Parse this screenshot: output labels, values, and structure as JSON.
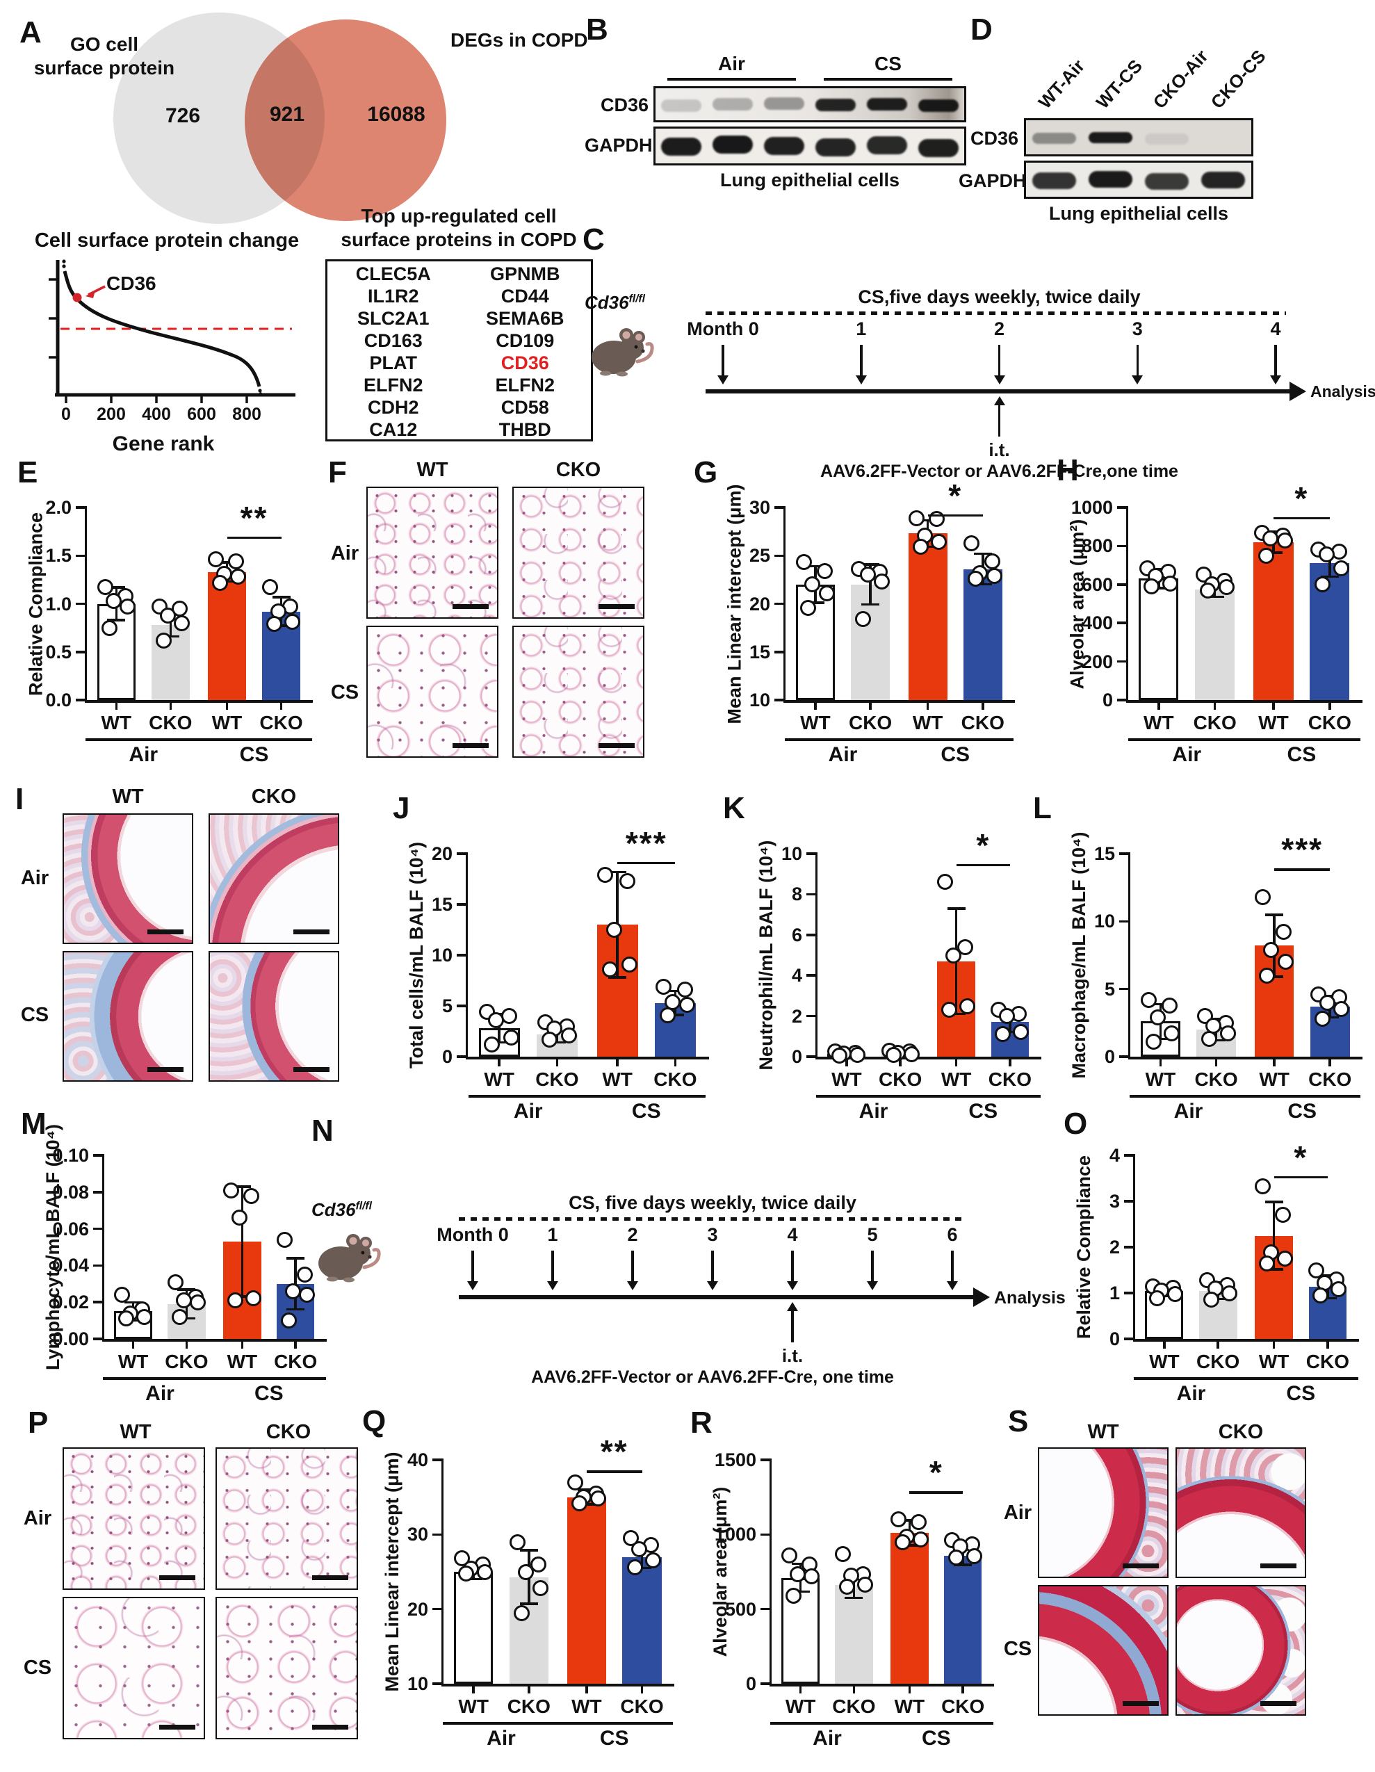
{
  "colors": {
    "red": "#e8380d",
    "blue": "#2e4d9e",
    "gray_bar": "#dcdcdc",
    "venn_left": "#e4e3e3",
    "venn_right": "#dd8571",
    "highlight_red": "#e02020",
    "arrow_red": "#d4232a"
  },
  "letters": {
    "A": "A",
    "B": "B",
    "C": "C",
    "D": "D",
    "E": "E",
    "F": "F",
    "G": "G",
    "H": "H",
    "I": "I",
    "J": "J",
    "K": "K",
    "L": "L",
    "M": "M",
    "N": "N",
    "O": "O",
    "P": "P",
    "Q": "Q",
    "R": "R",
    "S": "S"
  },
  "venn": {
    "left_label_1": "GO cell",
    "left_label_2": "surface protein",
    "right_label": "DEGs in COPD",
    "left_count": "726",
    "overlap_count": "921",
    "right_count": "16088"
  },
  "rank_plot": {
    "title": "Cell surface protein change",
    "xlabel": "Gene rank",
    "xticks": [
      "0",
      "200",
      "400",
      "600",
      "800"
    ],
    "gene_label": "CD36"
  },
  "table": {
    "title_line1": "Top up-regulated cell",
    "title_line2": "surface proteins in COPD",
    "col1": [
      "CLEC5A",
      "IL1R2",
      "SLC2A1",
      "CD163",
      "PLAT",
      "ELFN2",
      "CDH2",
      "CA12"
    ],
    "col2": [
      "GPNMB",
      "CD44",
      "SEMA6B",
      "CD109",
      "CD36",
      "ELFN2",
      "CD58",
      "THBD"
    ],
    "highlight": "CD36"
  },
  "blots": {
    "B": {
      "groups": [
        "Air",
        "CS"
      ],
      "row1": "CD36",
      "row2": "GAPDH",
      "caption": "Lung epithelial cells",
      "cd36": [
        0.18,
        0.28,
        0.38,
        0.92,
        0.95,
        0.97
      ],
      "gapdh": [
        0.96,
        0.98,
        0.94,
        0.92,
        0.9,
        0.95
      ]
    },
    "D": {
      "lanes": [
        "WT-Air",
        "WT-CS",
        "CKO-Air",
        "CKO-CS"
      ],
      "row1": "CD36",
      "row2": "GAPDH",
      "caption": "Lung epithelial cells",
      "cd36": [
        0.4,
        0.97,
        0.08,
        0.02
      ],
      "gapdh": [
        0.85,
        0.97,
        0.82,
        0.92
      ]
    }
  },
  "timelines": {
    "C": {
      "mouse_gene": "Cd36",
      "mouse_sup": "fl/fl",
      "cs": "CS,five days weekly, twice daily",
      "months": [
        "Month 0",
        "1",
        "2",
        "3",
        "4"
      ],
      "it_index": 2,
      "it": "i.t.",
      "aav": "AAV6.2FF-Vector or AAV6.2FF-Cre,one time",
      "analysis": "Analysis"
    },
    "N": {
      "mouse_gene": "Cd36",
      "mouse_sup": "fl/fl",
      "cs": "CS, five days weekly, twice daily",
      "months": [
        "Month 0",
        "1",
        "2",
        "3",
        "4",
        "5",
        "6"
      ],
      "it_index": 4,
      "it": "i.t.",
      "aav": "AAV6.2FF-Vector or AAV6.2FF-Cre, one time",
      "analysis": "Analysis"
    }
  },
  "histology": {
    "F": {
      "cols": [
        "WT",
        "CKO"
      ],
      "rows": [
        "Air",
        "CS"
      ]
    },
    "I": {
      "cols": [
        "WT",
        "CKO"
      ],
      "rows": [
        "Air",
        "CS"
      ]
    },
    "P": {
      "cols": [
        "WT",
        "CKO"
      ],
      "rows": [
        "Air",
        "CS"
      ]
    },
    "S": {
      "cols": [
        "WT",
        "CKO"
      ],
      "rows": [
        "Air",
        "CS"
      ]
    }
  },
  "chart_data": [
    {
      "id": "A-venn",
      "type": "venn",
      "sets": [
        "GO cell surface protein",
        "DEGs in COPD"
      ],
      "unique_counts": [
        726,
        16088
      ],
      "overlap": 921
    },
    {
      "id": "A-rank",
      "type": "line",
      "title": "Cell surface protein change",
      "xlabel": "Gene rank",
      "xticks": [
        0,
        200,
        400,
        600,
        800
      ],
      "x_range": [
        0,
        920
      ],
      "highlight_gene": "CD36",
      "annotation": "CD36 highlighted near rank 50; red dashed no-change threshold; descending ranked fold-change curve of 921 genes"
    },
    {
      "id": "E",
      "type": "bar",
      "panel": "E",
      "padL": 95,
      "ylabel": "Relative Compliance",
      "ylim": [
        0,
        2
      ],
      "yticks": [
        "0.0",
        "0.5",
        "1.0",
        "1.5",
        "2.0"
      ],
      "categories": [
        "WT",
        "CKO",
        "WT",
        "CKO"
      ],
      "groups": [
        "Air",
        "CS"
      ],
      "bar_colors": [
        "white",
        "gray",
        "red",
        "blue"
      ],
      "values": [
        1.0,
        0.78,
        1.33,
        0.92
      ],
      "errors": [
        0.17,
        0.12,
        0.1,
        0.15
      ],
      "points": [
        [
          1.17,
          1.08,
          1.03,
          0.97,
          0.75
        ],
        [
          0.97,
          0.95,
          0.88,
          0.8,
          0.62
        ],
        [
          1.46,
          1.44,
          1.31,
          1.28,
          1.22
        ],
        [
          1.17,
          0.97,
          0.92,
          0.81,
          0.79
        ]
      ],
      "sig": {
        "label": "**",
        "bars": [
          2,
          3
        ],
        "y": 1.7
      }
    },
    {
      "id": "G",
      "type": "bar",
      "panel": "G",
      "padL": 95,
      "ylabel": "Mean Linear intercept (μm)",
      "ylim": [
        10,
        30
      ],
      "yticks": [
        "10",
        "15",
        "20",
        "25",
        "30"
      ],
      "categories": [
        "WT",
        "CKO",
        "WT",
        "CKO"
      ],
      "groups": [
        "Air",
        "CS"
      ],
      "bar_colors": [
        "white",
        "gray",
        "red",
        "blue"
      ],
      "values": [
        22.0,
        22.0,
        27.3,
        23.6
      ],
      "errors": [
        1.9,
        2.1,
        1.4,
        1.6
      ],
      "points": [
        [
          24.3,
          23.4,
          22.0,
          21.1,
          19.6
        ],
        [
          23.6,
          23.3,
          23.0,
          22.3,
          18.4
        ],
        [
          28.9,
          28.8,
          27.1,
          26.4,
          25.9
        ],
        [
          26.3,
          24.4,
          23.2,
          22.9,
          22.6
        ]
      ],
      "sig": {
        "label": "*",
        "bars": [
          2,
          3
        ],
        "y": 29.3
      }
    },
    {
      "id": "H",
      "type": "bar",
      "panel": "H",
      "padL": 108,
      "ylabel": "Alveolar area (μm²)",
      "ylim": [
        0,
        1000
      ],
      "yticks": [
        "0",
        "200",
        "400",
        "600",
        "800",
        "1000"
      ],
      "categories": [
        "WT",
        "CKO",
        "WT",
        "CKO"
      ],
      "groups": [
        "Air",
        "CS"
      ],
      "bar_colors": [
        "white",
        "gray",
        "red",
        "blue"
      ],
      "values": [
        630,
        575,
        820,
        710
      ],
      "errors": [
        50,
        40,
        55,
        70
      ],
      "points": [
        [
          685,
          665,
          645,
          605,
          590
        ],
        [
          650,
          620,
          600,
          585,
          570
        ],
        [
          870,
          855,
          840,
          830,
          750
        ],
        [
          780,
          770,
          755,
          685,
          600
        ]
      ],
      "sig": {
        "label": "*",
        "bars": [
          2,
          3
        ],
        "y": 950
      }
    },
    {
      "id": "J",
      "type": "bar",
      "panel": "J",
      "padL": 95,
      "ylabel": "Total cells/mL BALF (10⁴)",
      "ylim": [
        0,
        20
      ],
      "yticks": [
        "0",
        "5",
        "10",
        "15",
        "20"
      ],
      "categories": [
        "WT",
        "CKO",
        "WT",
        "CKO"
      ],
      "groups": [
        "Air",
        "CS"
      ],
      "bar_colors": [
        "white",
        "gray",
        "red",
        "blue"
      ],
      "values": [
        2.8,
        2.2,
        13.0,
        5.3
      ],
      "errors": [
        1.4,
        0.8,
        5.2,
        1.2
      ],
      "points": [
        [
          4.4,
          4.0,
          3.6,
          1.9,
          1.2
        ],
        [
          3.4,
          3.0,
          2.8,
          2.1,
          1.7
        ],
        [
          17.9,
          17.3,
          12.5,
          9.1,
          8.6
        ],
        [
          6.9,
          6.6,
          5.4,
          5.1,
          4.1
        ]
      ],
      "sig": {
        "label": "***",
        "bars": [
          2,
          3
        ],
        "y": 19.2
      }
    },
    {
      "id": "K",
      "type": "bar",
      "panel": "K",
      "padL": 88,
      "ylabel": "Neutrophil/mL BALF (10⁴)",
      "ylim": [
        0,
        10
      ],
      "yticks": [
        "0",
        "2",
        "4",
        "6",
        "8",
        "10"
      ],
      "categories": [
        "WT",
        "CKO",
        "WT",
        "CKO"
      ],
      "groups": [
        "Air",
        "CS"
      ],
      "bar_colors": [
        "white",
        "gray",
        "red",
        "blue"
      ],
      "values": [
        0.15,
        0.18,
        4.7,
        1.7
      ],
      "errors": [
        0.1,
        0.12,
        2.6,
        0.5
      ],
      "points": [
        [
          0.25,
          0.2,
          0.15,
          0.1,
          0.05
        ],
        [
          0.3,
          0.25,
          0.18,
          0.12,
          0.08
        ],
        [
          8.6,
          5.4,
          5.0,
          2.5,
          2.3
        ],
        [
          2.3,
          2.1,
          2.0,
          1.2,
          1.1
        ]
      ],
      "sig": {
        "label": "*",
        "bars": [
          2,
          3
        ],
        "y": 9.5
      }
    },
    {
      "id": "L",
      "type": "bar",
      "panel": "L",
      "padL": 88,
      "ylabel": "Macrophage/mL BALF (10⁴)",
      "ylim": [
        0,
        15
      ],
      "yticks": [
        "0",
        "5",
        "10",
        "15"
      ],
      "categories": [
        "WT",
        "CKO",
        "WT",
        "CKO"
      ],
      "groups": [
        "Air",
        "CS"
      ],
      "bar_colors": [
        "white",
        "gray",
        "red",
        "blue"
      ],
      "values": [
        2.6,
        2.0,
        8.2,
        3.7
      ],
      "errors": [
        1.3,
        0.8,
        2.3,
        0.8
      ],
      "points": [
        [
          4.2,
          3.8,
          2.9,
          1.7,
          1.1
        ],
        [
          3.0,
          2.5,
          2.3,
          1.7,
          1.3
        ],
        [
          11.8,
          9.2,
          7.9,
          7.0,
          6.0
        ],
        [
          4.6,
          4.4,
          4.0,
          3.5,
          2.8
        ]
      ],
      "sig": {
        "label": "***",
        "bars": [
          2,
          3
        ],
        "y": 13.9
      }
    },
    {
      "id": "M",
      "type": "bar",
      "panel": "M",
      "padL": 112,
      "ylabel": "Lymphocyte/mL BALF (10⁴)",
      "ylim": [
        0,
        0.1
      ],
      "yticks": [
        "0.00",
        "0.02",
        "0.04",
        "0.06",
        "0.08",
        "0.10"
      ],
      "categories": [
        "WT",
        "CKO",
        "WT",
        "CKO"
      ],
      "groups": [
        "Air",
        "CS"
      ],
      "bar_colors": [
        "white",
        "gray",
        "red",
        "blue"
      ],
      "values": [
        0.015,
        0.019,
        0.053,
        0.03
      ],
      "errors": [
        0.005,
        0.008,
        0.03,
        0.014
      ],
      "points": [
        [
          0.024,
          0.016,
          0.014,
          0.012,
          0.011
        ],
        [
          0.031,
          0.023,
          0.021,
          0.02,
          0.012
        ],
        [
          0.081,
          0.078,
          0.066,
          0.022,
          0.021
        ],
        [
          0.054,
          0.035,
          0.026,
          0.024,
          0.01
        ]
      ],
      "sig": null
    },
    {
      "id": "O",
      "type": "bar",
      "panel": "O",
      "padL": 80,
      "ylabel": "Relative Compliance",
      "ylim": [
        0,
        4
      ],
      "yticks": [
        "0",
        "1",
        "2",
        "3",
        "4"
      ],
      "categories": [
        "WT",
        "CKO",
        "WT",
        "CKO"
      ],
      "groups": [
        "Air",
        "CS"
      ],
      "bar_colors": [
        "white",
        "gray",
        "red",
        "blue"
      ],
      "values": [
        1.05,
        1.05,
        2.25,
        1.13
      ],
      "errors": [
        0.12,
        0.18,
        0.74,
        0.25
      ],
      "points": [
        [
          1.15,
          1.12,
          1.05,
          0.98,
          0.88
        ],
        [
          1.28,
          1.18,
          1.1,
          1.0,
          0.85
        ],
        [
          3.32,
          2.7,
          1.88,
          1.75,
          1.65
        ],
        [
          1.5,
          1.3,
          1.22,
          1.08,
          0.95
        ]
      ],
      "sig": {
        "label": "*",
        "bars": [
          2,
          3
        ],
        "y": 3.55
      }
    },
    {
      "id": "Q",
      "type": "bar",
      "panel": "Q",
      "padL": 95,
      "ylabel": "Mean Linear intercept (μm)",
      "ylim": [
        10,
        40
      ],
      "yticks": [
        "10",
        "20",
        "30",
        "40"
      ],
      "categories": [
        "WT",
        "CKO",
        "WT",
        "CKO"
      ],
      "groups": [
        "Air",
        "CS"
      ],
      "bar_colors": [
        "white",
        "gray",
        "red",
        "blue"
      ],
      "values": [
        25.0,
        24.3,
        35.0,
        27.0
      ],
      "errors": [
        1.0,
        3.6,
        1.0,
        1.5
      ],
      "points": [
        [
          26.8,
          26.0,
          25.4,
          25.0,
          24.8
        ],
        [
          29.0,
          26.0,
          25.0,
          22.8,
          19.5
        ],
        [
          37.0,
          35.5,
          35.0,
          34.8,
          34.2
        ],
        [
          29.5,
          28.6,
          28.0,
          26.5,
          25.6
        ]
      ],
      "sig": {
        "label": "**",
        "bars": [
          2,
          3
        ],
        "y": 38.6
      }
    },
    {
      "id": "R",
      "type": "bar",
      "panel": "R",
      "padL": 112,
      "ylabel": "Alveolar area (μm²)",
      "ylim": [
        0,
        1500
      ],
      "yticks": [
        "0",
        "500",
        "1000",
        "1500"
      ],
      "categories": [
        "WT",
        "CKO",
        "WT",
        "CKO"
      ],
      "groups": [
        "Air",
        "CS"
      ],
      "bar_colors": [
        "white",
        "gray",
        "red",
        "blue"
      ],
      "values": [
        710,
        660,
        1010,
        855
      ],
      "errors": [
        95,
        85,
        85,
        60
      ],
      "points": [
        [
          860,
          800,
          735,
          720,
          590
        ],
        [
          870,
          735,
          725,
          665,
          650
        ],
        [
          1100,
          1085,
          985,
          965,
          950
        ],
        [
          960,
          935,
          920,
          855,
          845
        ]
      ],
      "sig": {
        "label": "*",
        "bars": [
          2,
          3
        ],
        "y": 1290
      }
    }
  ]
}
